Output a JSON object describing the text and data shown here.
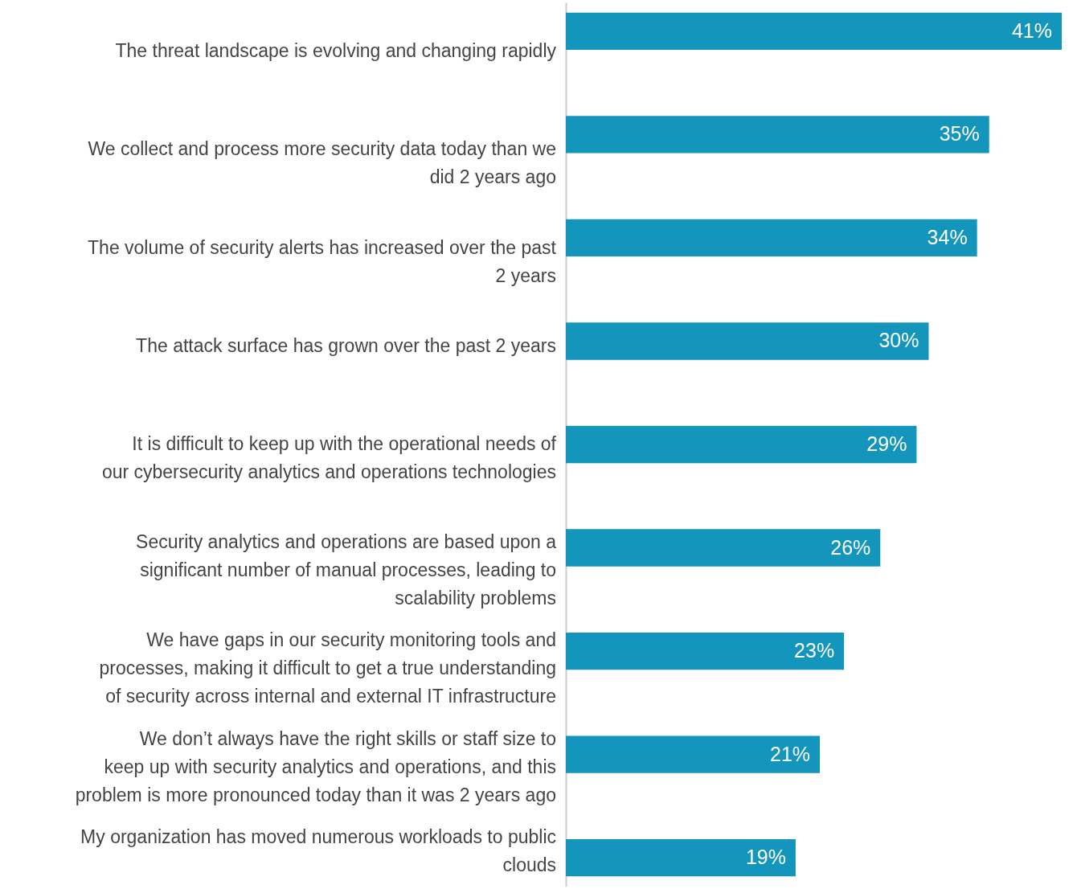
{
  "chart_data": {
    "type": "bar",
    "orientation": "horizontal",
    "categories": [
      "The threat landscape is evolving and changing rapidly",
      "We collect and process more security data today than we did 2 years ago",
      "The volume of security alerts has increased over the past 2 years",
      "The attack surface has grown over the past 2 years",
      "It is difficult to keep up with the operational needs of our cybersecurity analytics and operations technologies",
      "Security analytics and operations are based upon a significant number of manual processes, leading to scalability problems",
      "We have gaps in our security monitoring tools and processes, making it difficult to get a true understanding of security across internal and external IT infrastructure",
      "We don’t always have the right skills or staff size to keep up with security analytics and operations, and this problem is more pronounced today than it was 2 years ago",
      "My organization has moved numerous workloads to public clouds"
    ],
    "values": [
      41,
      35,
      34,
      30,
      29,
      26,
      23,
      21,
      19
    ],
    "value_labels": [
      "41%",
      "35%",
      "34%",
      "30%",
      "29%",
      "26%",
      "23%",
      "21%",
      "19%"
    ],
    "color": "#1495bc",
    "xlim": [
      0,
      41
    ],
    "tick_labels": "y"
  }
}
